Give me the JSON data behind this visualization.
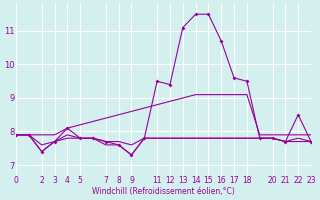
{
  "xlabel": "Windchill (Refroidissement éolien,°C)",
  "ylabel": "",
  "background_color": "#d4f0ee",
  "line_color": "#990099",
  "xlim": [
    0,
    23
  ],
  "ylim": [
    6.7,
    11.8
  ],
  "xticks": [
    0,
    2,
    3,
    4,
    5,
    7,
    8,
    9,
    11,
    12,
    13,
    14,
    15,
    16,
    17,
    18,
    20,
    21,
    22,
    23
  ],
  "yticks": [
    7,
    8,
    9,
    10,
    11
  ],
  "hours": [
    0,
    1,
    2,
    3,
    4,
    5,
    6,
    7,
    8,
    9,
    10,
    11,
    12,
    13,
    14,
    15,
    16,
    17,
    18,
    19,
    20,
    21,
    22,
    23
  ],
  "temp": [
    7.9,
    7.9,
    7.4,
    7.7,
    8.1,
    7.8,
    7.8,
    7.7,
    7.6,
    7.3,
    7.8,
    9.5,
    9.4,
    11.1,
    11.5,
    11.5,
    10.7,
    9.6,
    9.5,
    7.8,
    7.8,
    7.7,
    8.5,
    7.7
  ],
  "tmin": [
    7.9,
    7.9,
    7.4,
    7.7,
    7.8,
    7.8,
    7.8,
    7.6,
    7.6,
    7.3,
    7.8,
    7.8,
    7.8,
    7.8,
    7.8,
    7.8,
    7.8,
    7.8,
    7.8,
    7.8,
    7.8,
    7.7,
    7.7,
    7.7
  ],
  "tmax": [
    7.9,
    7.9,
    7.9,
    7.9,
    8.1,
    8.2,
    8.3,
    8.4,
    8.5,
    8.6,
    8.7,
    8.8,
    8.9,
    9.0,
    9.1,
    9.1,
    9.1,
    9.1,
    9.1,
    7.9,
    7.9,
    7.9,
    7.9,
    7.9
  ],
  "tavg": [
    7.9,
    7.9,
    7.6,
    7.7,
    7.9,
    7.8,
    7.8,
    7.7,
    7.7,
    7.6,
    7.8,
    7.8,
    7.8,
    7.8,
    7.8,
    7.8,
    7.8,
    7.8,
    7.8,
    7.8,
    7.8,
    7.7,
    7.8,
    7.7
  ]
}
